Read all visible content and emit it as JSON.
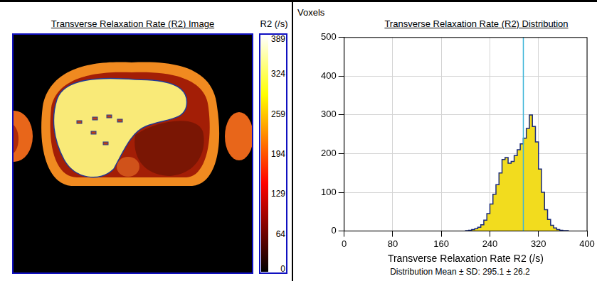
{
  "image_panel": {
    "title": "Transverse Relaxation Rate (R2) Image",
    "colorbar": {
      "label": "R2 (/s)",
      "range": [
        0,
        389
      ],
      "ticks": [
        0,
        64,
        129,
        194,
        259,
        324,
        389
      ]
    }
  },
  "chart_data": {
    "type": "histogram",
    "title": "Transverse Relaxation Rate (R2) Distribution",
    "y_label": "Voxels",
    "x_label": "Transverse Relaxation Rate R2 (/s)",
    "bins": [
      200,
      205,
      210,
      215,
      220,
      225,
      230,
      235,
      240,
      245,
      250,
      255,
      260,
      265,
      270,
      275,
      280,
      285,
      290,
      295,
      300,
      305,
      310,
      315,
      320,
      325,
      330,
      335,
      340,
      345,
      350,
      355,
      360,
      365,
      370
    ],
    "counts": [
      0,
      1,
      2,
      4,
      6,
      10,
      16,
      28,
      45,
      70,
      95,
      120,
      150,
      185,
      190,
      175,
      180,
      195,
      210,
      225,
      240,
      265,
      300,
      270,
      230,
      160,
      100,
      55,
      30,
      15,
      8,
      4,
      2,
      1
    ],
    "color": "#f2dc1e",
    "xlim": [
      0,
      400
    ],
    "xticks": [
      0,
      80,
      160,
      240,
      320,
      400
    ],
    "ylim": [
      0,
      500
    ],
    "yticks": [
      0,
      100,
      200,
      300,
      400,
      500
    ],
    "grid": true,
    "mean_line": 295.1,
    "mean_label": "Distribution Mean ± SD: 295.1 ± 26.2"
  }
}
